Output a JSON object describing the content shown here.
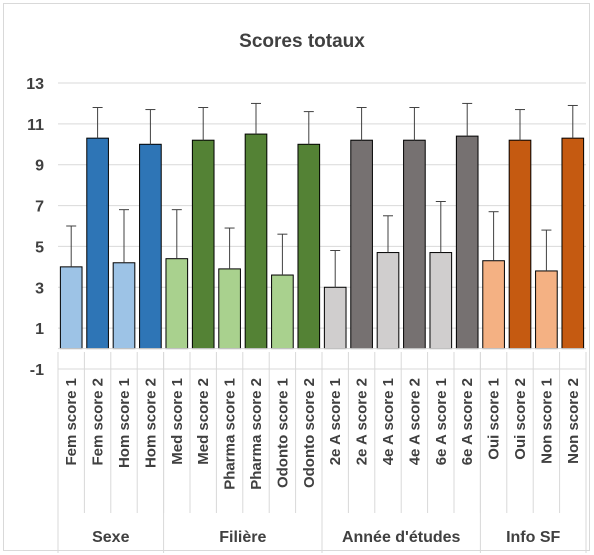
{
  "chart_data": {
    "type": "bar",
    "title": "Scores totaux",
    "ylim": [
      -1,
      13
    ],
    "yticks": [
      -1,
      1,
      3,
      5,
      7,
      9,
      11,
      13
    ],
    "grid": true,
    "legend": "none",
    "categories": [
      "Fem score 1",
      "Fem score 2",
      "Hom score 1",
      "Hom score 2",
      "Med score 1",
      "Med score 2",
      "Pharma score 1",
      "Pharma score 2",
      "Odonto score 1",
      "Odonto score 2",
      "2e A score 1",
      "2e A score 2",
      "4e A score 1",
      "4e A score 2",
      "6e A score 1",
      "6e A score 2",
      "Oui score 1",
      "Oui score 2",
      "Non score 1",
      "Non score 2"
    ],
    "values": [
      4.0,
      10.3,
      4.2,
      10.0,
      4.4,
      10.2,
      3.9,
      10.5,
      3.6,
      10.0,
      3.0,
      10.2,
      4.7,
      10.2,
      4.7,
      10.4,
      4.3,
      10.2,
      3.8,
      10.3
    ],
    "error_upper": [
      6.0,
      11.8,
      6.8,
      11.7,
      6.8,
      11.8,
      5.9,
      12.0,
      5.6,
      11.6,
      4.8,
      11.8,
      6.5,
      11.8,
      7.2,
      12.0,
      6.7,
      11.7,
      5.8,
      11.9
    ],
    "colors": [
      "#9dc3e6",
      "#2e75b6",
      "#9dc3e6",
      "#2e75b6",
      "#a9d18e",
      "#548235",
      "#a9d18e",
      "#548235",
      "#a9d18e",
      "#548235",
      "#d0cece",
      "#767171",
      "#d0cece",
      "#767171",
      "#d0cece",
      "#767171",
      "#f4b183",
      "#c55a11",
      "#f4b183",
      "#c55a11"
    ],
    "groups": [
      {
        "label": "Sexe",
        "count": 4
      },
      {
        "label": "Filière",
        "count": 6
      },
      {
        "label": "Année d'études",
        "count": 6
      },
      {
        "label": "Info SF",
        "count": 4
      }
    ]
  }
}
